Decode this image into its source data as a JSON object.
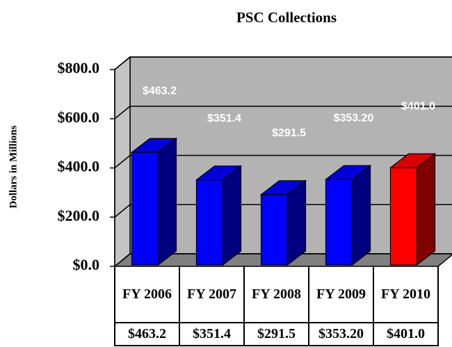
{
  "chart_data": {
    "type": "bar3d",
    "title": "PSC Collections",
    "y_label": "Dollars in Millions",
    "categories": [
      "FY 2006",
      "FY 2007",
      "FY 2008",
      "FY 2009",
      "FY 2010"
    ],
    "values": [
      463.2,
      351.4,
      291.5,
      353.2,
      401.0
    ],
    "value_labels": [
      "$463.2",
      "$351.4",
      "$291.5",
      "$353.20",
      "$401.0"
    ],
    "colors": [
      "#0000ff",
      "#0000ff",
      "#0000ff",
      "#0000ff",
      "#ff0000"
    ],
    "ylim": [
      0,
      800
    ],
    "yticks": [
      {
        "value": 0,
        "label": "$0.0"
      },
      {
        "value": 200,
        "label": "$200.0"
      },
      {
        "value": 400,
        "label": "$400.0"
      },
      {
        "value": 600,
        "label": "$600.0"
      },
      {
        "value": 800,
        "label": "$800.0"
      }
    ],
    "grid": true
  }
}
